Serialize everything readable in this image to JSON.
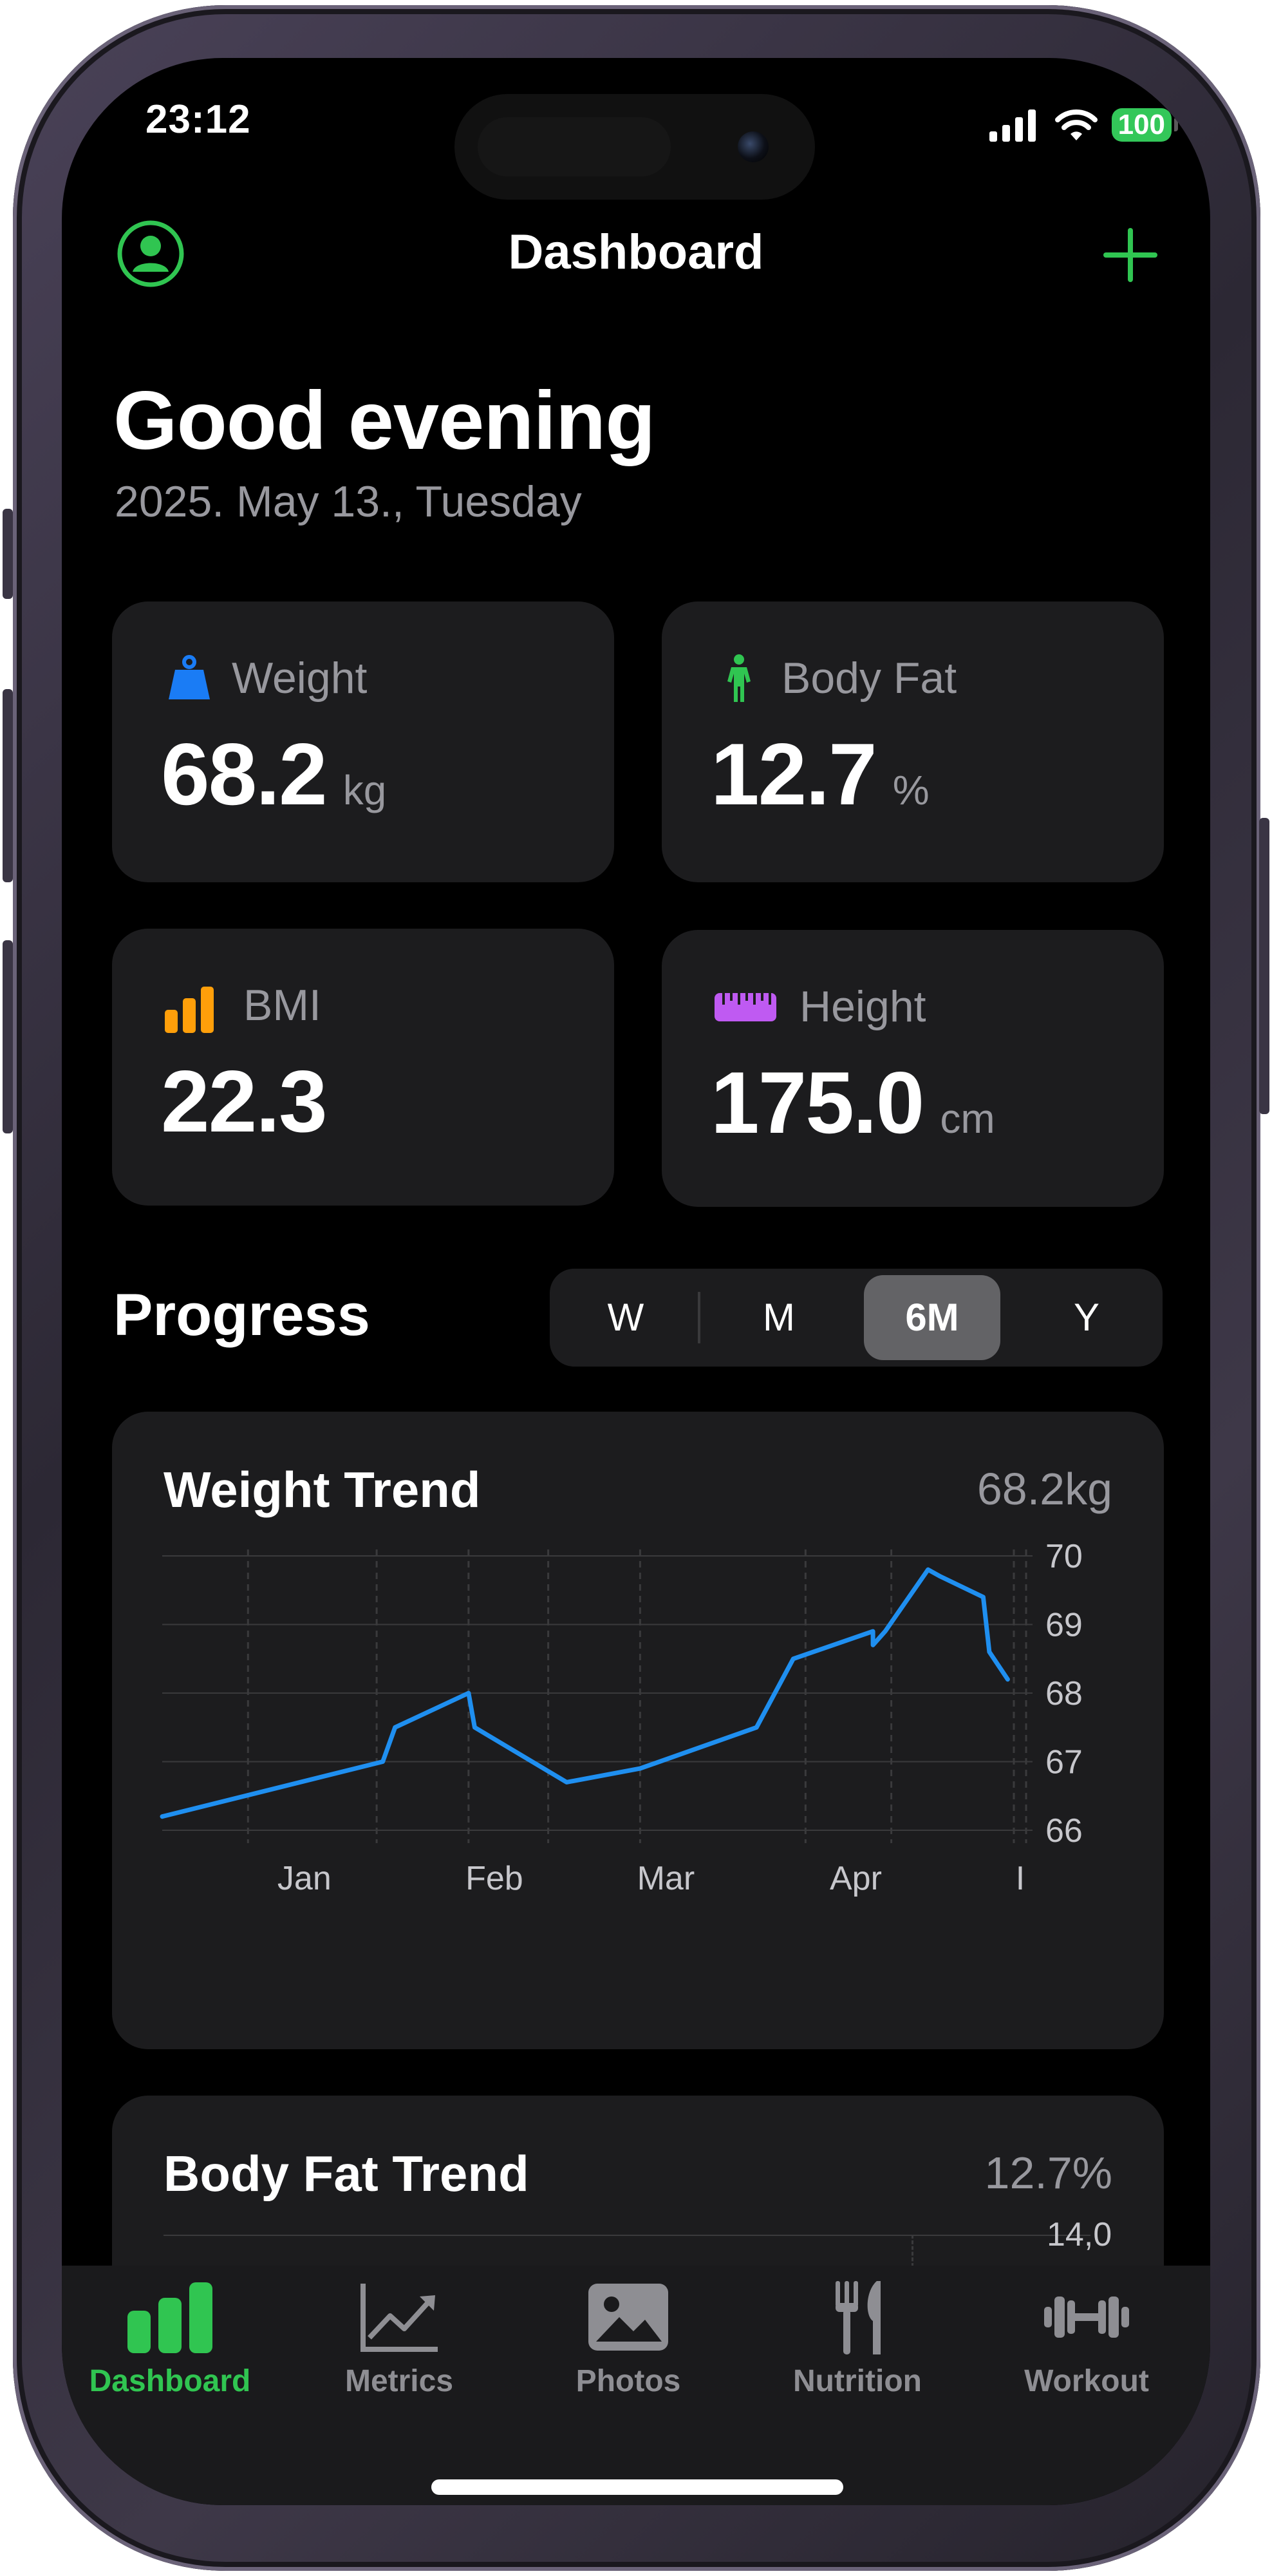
{
  "status": {
    "time": "23:12",
    "battery": "100"
  },
  "nav": {
    "title": "Dashboard"
  },
  "greeting": {
    "title": "Good evening",
    "date": "2025. May 13., Tuesday"
  },
  "metrics": [
    {
      "label": "Weight",
      "value": "68.2",
      "unit": "kg",
      "icon": "weight-icon",
      "color": "#1a7cf5"
    },
    {
      "label": "Body Fat",
      "value": "12.7",
      "unit": "%",
      "icon": "figure-icon",
      "color": "#30c551"
    },
    {
      "label": "BMI",
      "value": "22.3",
      "unit": "",
      "icon": "bar-chart-icon",
      "color": "#ff9f0a"
    },
    {
      "label": "Height",
      "value": "175.0",
      "unit": "cm",
      "icon": "ruler-icon",
      "color": "#bf5af2"
    }
  ],
  "progress": {
    "title": "Progress",
    "ranges": [
      "W",
      "M",
      "6M",
      "Y"
    ],
    "selected_range": "6M"
  },
  "weight_chart": {
    "title": "Weight Trend",
    "current": "68.2kg"
  },
  "bodyfat_chart": {
    "title": "Body Fat Trend",
    "current": "12.7%",
    "visible_tick": "14,0"
  },
  "chart_data": {
    "type": "line",
    "title": "Weight Trend",
    "x_tick_labels": [
      "Jan",
      "Feb",
      "Mar",
      "Apr",
      "I"
    ],
    "y_tick_labels": [
      "70",
      "69",
      "68",
      "67",
      "66"
    ],
    "ylim": [
      66,
      70
    ],
    "grid": true,
    "color": "#1f8ff0",
    "series": [
      {
        "points": [
          {
            "x": "2024-12-13",
            "y": 66.2
          },
          {
            "x": "2025-01-18",
            "y": 67.0
          },
          {
            "x": "2025-01-20",
            "y": 67.5
          },
          {
            "x": "2025-02-01",
            "y": 68.0
          },
          {
            "x": "2025-02-02",
            "y": 67.5
          },
          {
            "x": "2025-02-17",
            "y": 66.7
          },
          {
            "x": "2025-02-29",
            "y": 66.9
          },
          {
            "x": "2025-03-20",
            "y": 67.5
          },
          {
            "x": "2025-03-26",
            "y": 68.5
          },
          {
            "x": "2025-04-08",
            "y": 68.9
          },
          {
            "x": "2025-04-08",
            "y": 68.7
          },
          {
            "x": "2025-04-10",
            "y": 68.9
          },
          {
            "x": "2025-04-17",
            "y": 69.8
          },
          {
            "x": "2025-04-19",
            "y": 69.7
          },
          {
            "x": "2025-04-26",
            "y": 69.4
          },
          {
            "x": "2025-04-27",
            "y": 68.6
          },
          {
            "x": "2025-04-30",
            "y": 68.2
          }
        ]
      }
    ]
  },
  "tabs": [
    {
      "label": "Dashboard",
      "icon": "dashboard-icon",
      "active": true
    },
    {
      "label": "Metrics",
      "icon": "metrics-icon",
      "active": false
    },
    {
      "label": "Photos",
      "icon": "photo-icon",
      "active": false
    },
    {
      "label": "Nutrition",
      "icon": "fork-knife-icon",
      "active": false
    },
    {
      "label": "Workout",
      "icon": "dumbbell-icon",
      "active": false
    }
  ],
  "colors": {
    "accent": "#30c551",
    "card": "#1c1c1e",
    "secondary_text": "#98989e"
  }
}
